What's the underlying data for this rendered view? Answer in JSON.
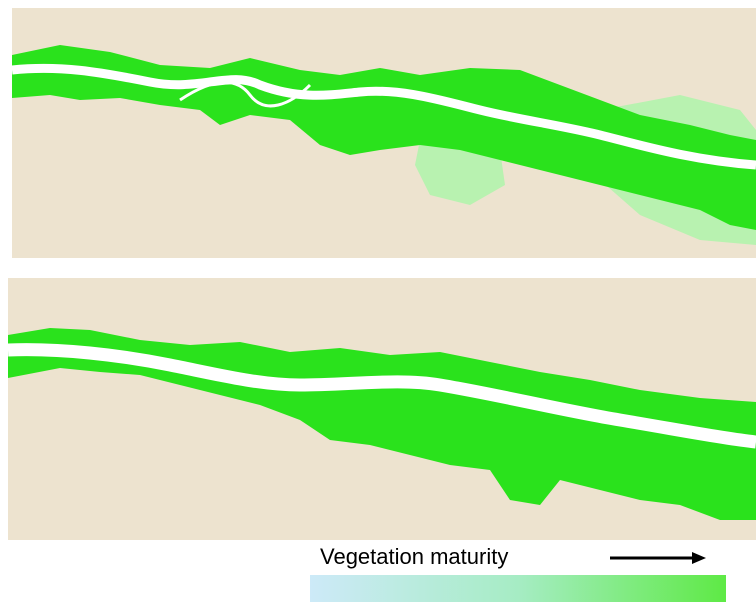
{
  "legend": {
    "label": "Vegetation maturity"
  }
}
